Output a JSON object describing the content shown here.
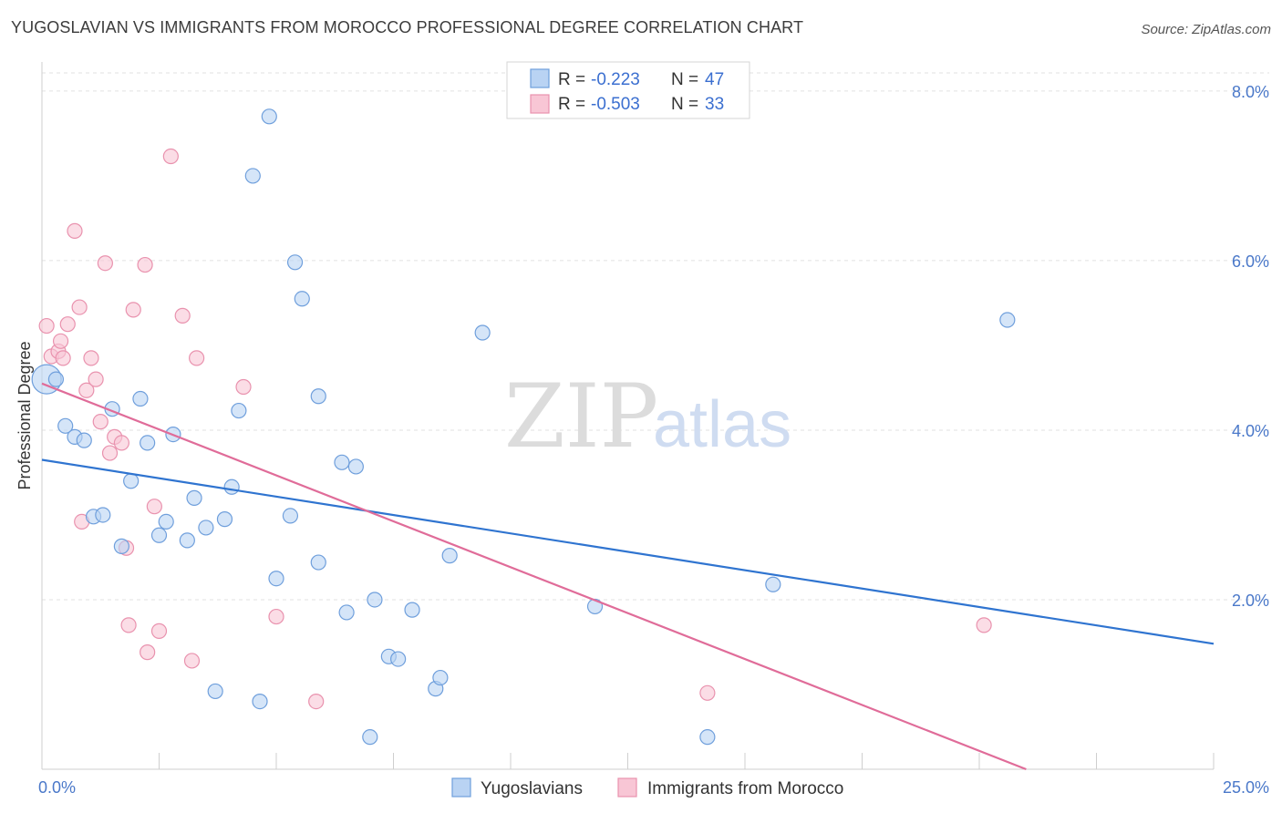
{
  "title": "YUGOSLAVIAN VS IMMIGRANTS FROM MOROCCO PROFESSIONAL DEGREE CORRELATION CHART",
  "source": "Source: ZipAtlas.com",
  "watermark": {
    "part1": "ZIP",
    "part2": "atlas"
  },
  "colors": {
    "blue_fill": "#b9d3f3",
    "blue_stroke": "#6f9fdc",
    "blue_line": "#2f74d0",
    "pink_fill": "#f8c6d5",
    "pink_stroke": "#e992ae",
    "pink_line": "#e06c99",
    "grid": "#e2e2e2",
    "tick_label": "#4a78c9"
  },
  "legend": {
    "rows": [
      {
        "r_label": "R =",
        "r_value": "-0.223",
        "n_label": "N =",
        "n_value": "47",
        "series": "blue"
      },
      {
        "r_label": "R =",
        "r_value": "-0.503",
        "n_label": "N =",
        "n_value": "33",
        "series": "pink"
      }
    ]
  },
  "bottom_legend": [
    "Yugoslavians",
    "Immigrants from Morocco"
  ],
  "chart_data": {
    "type": "scatter",
    "title": "YUGOSLAVIAN VS IMMIGRANTS FROM MOROCCO PROFESSIONAL DEGREE CORRELATION CHART",
    "xlabel": "",
    "ylabel": "Professional Degree",
    "xlim": [
      0,
      25
    ],
    "ylim": [
      0,
      8.3
    ],
    "x_tick_labels": [
      "0.0%",
      "25.0%"
    ],
    "y_ticks": [
      2,
      4,
      6,
      8
    ],
    "y_tick_labels": [
      "2.0%",
      "4.0%",
      "6.0%",
      "8.0%"
    ],
    "grid": "horizontal dashed",
    "legend_placement": "top-center",
    "series": [
      {
        "name": "Yugoslavians",
        "color": "#6f9fdc",
        "trend": {
          "x": [
            0,
            25
          ],
          "y": [
            3.65,
            1.48
          ]
        },
        "points": [
          [
            0.1,
            4.6
          ],
          [
            0.3,
            4.6
          ],
          [
            0.5,
            4.05
          ],
          [
            0.7,
            3.92
          ],
          [
            0.9,
            3.88
          ],
          [
            1.1,
            2.98
          ],
          [
            1.3,
            3.0
          ],
          [
            1.5,
            4.25
          ],
          [
            1.7,
            2.63
          ],
          [
            1.9,
            3.4
          ],
          [
            2.1,
            4.37
          ],
          [
            2.25,
            3.85
          ],
          [
            2.5,
            2.76
          ],
          [
            2.65,
            2.92
          ],
          [
            2.8,
            3.95
          ],
          [
            3.1,
            2.7
          ],
          [
            3.25,
            3.2
          ],
          [
            3.5,
            2.85
          ],
          [
            3.7,
            0.92
          ],
          [
            3.9,
            2.95
          ],
          [
            4.05,
            3.33
          ],
          [
            4.2,
            4.23
          ],
          [
            4.5,
            7.0
          ],
          [
            4.65,
            0.8
          ],
          [
            4.85,
            7.7
          ],
          [
            5.0,
            2.25
          ],
          [
            5.3,
            2.99
          ],
          [
            5.4,
            5.98
          ],
          [
            5.55,
            5.55
          ],
          [
            5.9,
            4.4
          ],
          [
            5.9,
            2.44
          ],
          [
            6.4,
            3.62
          ],
          [
            6.5,
            1.85
          ],
          [
            6.7,
            3.57
          ],
          [
            7.0,
            0.38
          ],
          [
            7.1,
            2.0
          ],
          [
            7.4,
            1.33
          ],
          [
            7.6,
            1.3
          ],
          [
            7.9,
            1.88
          ],
          [
            8.4,
            0.95
          ],
          [
            8.5,
            1.08
          ],
          [
            8.7,
            2.52
          ],
          [
            9.4,
            5.15
          ],
          [
            11.8,
            1.92
          ],
          [
            14.2,
            0.38
          ],
          [
            15.6,
            2.18
          ],
          [
            20.6,
            5.3
          ]
        ]
      },
      {
        "name": "Immigrants from Morocco",
        "color": "#e992ae",
        "trend": {
          "x": [
            0,
            21.0
          ],
          "y": [
            4.55,
            0.0
          ]
        },
        "points": [
          [
            0.1,
            5.23
          ],
          [
            0.2,
            4.87
          ],
          [
            0.35,
            4.93
          ],
          [
            0.4,
            5.05
          ],
          [
            0.45,
            4.85
          ],
          [
            0.55,
            5.25
          ],
          [
            0.7,
            6.35
          ],
          [
            0.8,
            5.45
          ],
          [
            0.85,
            2.92
          ],
          [
            0.95,
            4.47
          ],
          [
            1.05,
            4.85
          ],
          [
            1.15,
            4.6
          ],
          [
            1.25,
            4.1
          ],
          [
            1.35,
            5.97
          ],
          [
            1.45,
            3.73
          ],
          [
            1.55,
            3.92
          ],
          [
            1.7,
            3.85
          ],
          [
            1.8,
            2.61
          ],
          [
            1.85,
            1.7
          ],
          [
            1.95,
            5.42
          ],
          [
            2.2,
            5.95
          ],
          [
            2.25,
            1.38
          ],
          [
            2.4,
            3.1
          ],
          [
            2.5,
            1.63
          ],
          [
            2.75,
            7.23
          ],
          [
            3.0,
            5.35
          ],
          [
            3.2,
            1.28
          ],
          [
            3.3,
            4.85
          ],
          [
            4.3,
            4.51
          ],
          [
            5.0,
            1.8
          ],
          [
            5.85,
            0.8
          ],
          [
            14.2,
            0.9
          ],
          [
            20.1,
            1.7
          ]
        ]
      }
    ]
  }
}
